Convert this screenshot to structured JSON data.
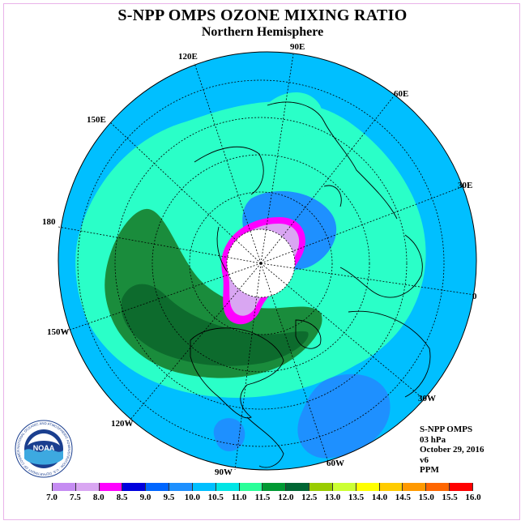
{
  "title": "S-NPP OMPS OZONE MIXING RATIO",
  "subtitle": "Northern Hemisphere",
  "longitude_labels": [
    "120E",
    "90E",
    "60E",
    "150E",
    "30E",
    "180",
    "0",
    "150W",
    "30W",
    "120W",
    "90W",
    "60W"
  ],
  "info": {
    "line1": "S-NPP OMPS",
    "line2": "03 hPa",
    "line3": "October 29, 2016",
    "line4": "v6",
    "line5": "PPM"
  },
  "colorbar": {
    "labels": [
      "7.0",
      "7.5",
      "8.0",
      "8.5",
      "9.0",
      "9.5",
      "10.0",
      "10.5",
      "11.0",
      "11.5",
      "12.0",
      "12.5",
      "13.0",
      "13.5",
      "14.0",
      "14.5",
      "15.0",
      "15.5",
      "16.0"
    ],
    "colors": [
      "#c58cf2",
      "#d9a6f2",
      "#ff00ff",
      "#0000dd",
      "#0066ff",
      "#1e90ff",
      "#00bfff",
      "#00e5e5",
      "#2aff99",
      "#009933",
      "#006633",
      "#99cc00",
      "#ccff33",
      "#ffff00",
      "#ffcc00",
      "#ff9900",
      "#ff6600",
      "#ff0000",
      "#804020"
    ]
  },
  "colors": {
    "ocean_ring": "#00bfff",
    "light_teal": "#40f0c8",
    "green": "#1a8c3c",
    "dark_green": "#0d6b2d",
    "blue": "#1e90ff",
    "pole_white": "#ffffff"
  },
  "logo": {
    "center_text": "NOAA",
    "ring_text": "NATIONAL OCEANIC AND ATMOSPHERIC ADMINISTRATION · U.S. DEPARTMENT OF COMMERCE"
  }
}
